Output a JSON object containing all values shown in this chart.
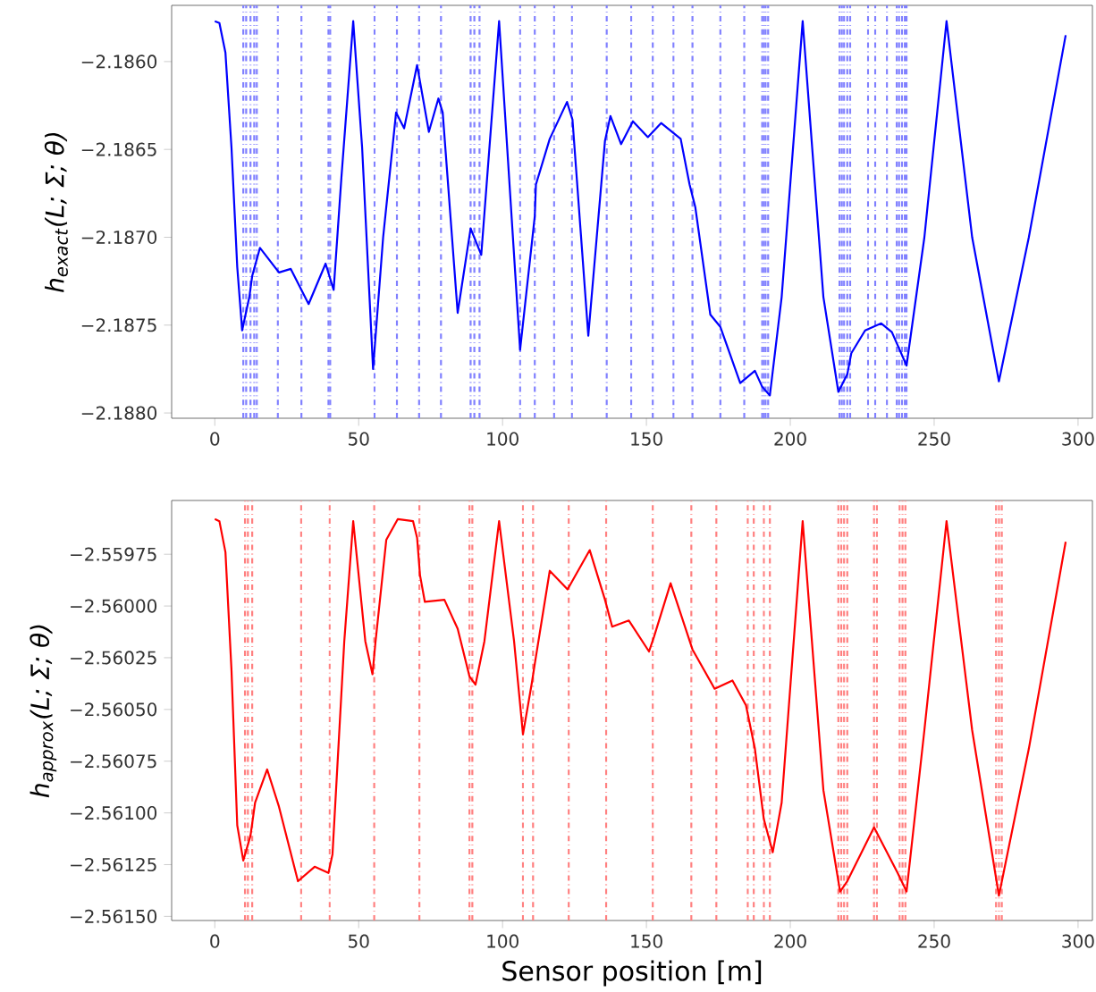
{
  "chart_data": [
    {
      "type": "line",
      "ylabel": "h$_{exact}$(L; Σ; θ)",
      "x": [
        0,
        1.6,
        3.7,
        5.8,
        7.8,
        9.5,
        12,
        13,
        15.7,
        22.3,
        26.4,
        32.6,
        38.5,
        41.3,
        44,
        48.1,
        51.2,
        55,
        58.5,
        63,
        65.8,
        70.3,
        74.4,
        77.7,
        79.2,
        84.4,
        88.9,
        92.6,
        98.8,
        106.1,
        111.2,
        111.6,
        116.4,
        122.4,
        124.3,
        129.8,
        135.6,
        137.5,
        141.2,
        145.3,
        150.5,
        155.1,
        161.9,
        165,
        167,
        172.2,
        175.7,
        182.6,
        187.7,
        190.2,
        192.9,
        197,
        204.3,
        211.5,
        216.7,
        219.8,
        221.2,
        226,
        231.6,
        235.3,
        238,
        240.4,
        246.6,
        254.3,
        263.2,
        272.5,
        282.9,
        295.7
      ],
      "values": [
        -2.18577,
        -2.18578,
        -2.18595,
        -2.18649,
        -2.18717,
        -2.18753,
        -2.18734,
        -2.18722,
        -2.18706,
        -2.1872,
        -2.18718,
        -2.18738,
        -2.18715,
        -2.1873,
        -2.18666,
        -2.18577,
        -2.18649,
        -2.18775,
        -2.187,
        -2.18629,
        -2.18638,
        -2.18602,
        -2.1864,
        -2.18621,
        -2.18629,
        -2.18743,
        -2.18695,
        -2.1871,
        -2.18577,
        -2.18764,
        -2.18688,
        -2.1867,
        -2.18644,
        -2.18623,
        -2.18633,
        -2.18756,
        -2.18645,
        -2.18631,
        -2.18647,
        -2.18634,
        -2.18643,
        -2.18635,
        -2.18644,
        -2.1867,
        -2.18683,
        -2.18744,
        -2.18751,
        -2.18783,
        -2.18776,
        -2.18785,
        -2.1879,
        -2.18734,
        -2.18577,
        -2.18734,
        -2.18788,
        -2.18778,
        -2.18766,
        -2.18753,
        -2.18749,
        -2.18754,
        -2.18764,
        -2.18773,
        -2.187,
        -2.18577,
        -2.187,
        -2.18782,
        -2.187,
        -2.18585
      ],
      "color": "#0000ff",
      "xlim": [
        -15,
        305
      ],
      "xticks": [
        0,
        50,
        100,
        150,
        200,
        250,
        300
      ],
      "ylim": [
        -2.18803,
        -2.18568
      ],
      "yticks": [
        {
          "value": -2.186,
          "label": "−2.1860"
        },
        {
          "value": -2.1865,
          "label": "−2.1865"
        },
        {
          "value": -2.187,
          "label": "−2.1870"
        },
        {
          "value": -2.1875,
          "label": "−2.1875"
        },
        {
          "value": -2.188,
          "label": "−2.1880"
        }
      ],
      "ref_lines": [
        {
          "axis": "x",
          "value": 9.9,
          "color": "#8080ff",
          "line_style": "dashdot"
        },
        {
          "axis": "x",
          "value": 10.9,
          "color": "#8080ff",
          "line_style": "dashdot"
        },
        {
          "axis": "x",
          "value": 12.4,
          "color": "#8080ff",
          "line_style": "dashdot"
        },
        {
          "axis": "x",
          "value": 13.7,
          "color": "#8080ff",
          "line_style": "dashdot"
        },
        {
          "axis": "x",
          "value": 14.6,
          "color": "#8080ff",
          "line_style": "dashdot"
        },
        {
          "axis": "x",
          "value": 21.9,
          "color": "#8080ff",
          "line_style": "dashdot"
        },
        {
          "axis": "x",
          "value": 30.1,
          "color": "#8080ff",
          "line_style": "dashdot"
        },
        {
          "axis": "x",
          "value": 39.5,
          "color": "#8080ff",
          "line_style": "dashdot"
        },
        {
          "axis": "x",
          "value": 40.1,
          "color": "#8080ff",
          "line_style": "dashdot"
        },
        {
          "axis": "x",
          "value": 55.5,
          "color": "#8080ff",
          "line_style": "dashdot"
        },
        {
          "axis": "x",
          "value": 63.3,
          "color": "#8080ff",
          "line_style": "dashdot"
        },
        {
          "axis": "x",
          "value": 71,
          "color": "#8080ff",
          "line_style": "dashdot"
        },
        {
          "axis": "x",
          "value": 78.6,
          "color": "#8080ff",
          "line_style": "dashdot"
        },
        {
          "axis": "x",
          "value": 88.9,
          "color": "#8080ff",
          "line_style": "dashdot"
        },
        {
          "axis": "x",
          "value": 90.2,
          "color": "#8080ff",
          "line_style": "dashdot"
        },
        {
          "axis": "x",
          "value": 92,
          "color": "#8080ff",
          "line_style": "dashdot"
        },
        {
          "axis": "x",
          "value": 106.1,
          "color": "#8080ff",
          "line_style": "dashdot"
        },
        {
          "axis": "x",
          "value": 111.2,
          "color": "#8080ff",
          "line_style": "dashdot"
        },
        {
          "axis": "x",
          "value": 117.9,
          "color": "#8080ff",
          "line_style": "dashdot"
        },
        {
          "axis": "x",
          "value": 124.1,
          "color": "#8080ff",
          "line_style": "dashdot"
        },
        {
          "axis": "x",
          "value": 136.2,
          "color": "#8080ff",
          "line_style": "dashdot"
        },
        {
          "axis": "x",
          "value": 144.7,
          "color": "#8080ff",
          "line_style": "dashdot"
        },
        {
          "axis": "x",
          "value": 152.2,
          "color": "#8080ff",
          "line_style": "dashdot"
        },
        {
          "axis": "x",
          "value": 159.4,
          "color": "#8080ff",
          "line_style": "dashdot"
        },
        {
          "axis": "x",
          "value": 166,
          "color": "#8080ff",
          "line_style": "dashdot"
        },
        {
          "axis": "x",
          "value": 175.7,
          "color": "#8080ff",
          "line_style": "dashdot"
        },
        {
          "axis": "x",
          "value": 184,
          "color": "#8080ff",
          "line_style": "dashdot"
        },
        {
          "axis": "x",
          "value": 190.2,
          "color": "#8080ff",
          "line_style": "dashdot"
        },
        {
          "axis": "x",
          "value": 190.8,
          "color": "#8080ff",
          "line_style": "dashdot"
        },
        {
          "axis": "x",
          "value": 191.4,
          "color": "#8080ff",
          "line_style": "dashdot"
        },
        {
          "axis": "x",
          "value": 192.3,
          "color": "#8080ff",
          "line_style": "dashdot"
        },
        {
          "axis": "x",
          "value": 217.1,
          "color": "#8080ff",
          "line_style": "dashdot"
        },
        {
          "axis": "x",
          "value": 217.9,
          "color": "#8080ff",
          "line_style": "dashdot"
        },
        {
          "axis": "x",
          "value": 218.7,
          "color": "#8080ff",
          "line_style": "dashdot"
        },
        {
          "axis": "x",
          "value": 219.8,
          "color": "#8080ff",
          "line_style": "dashdot"
        },
        {
          "axis": "x",
          "value": 220.8,
          "color": "#8080ff",
          "line_style": "dashdot"
        },
        {
          "axis": "x",
          "value": 227,
          "color": "#8080ff",
          "line_style": "dashdot"
        },
        {
          "axis": "x",
          "value": 229.5,
          "color": "#8080ff",
          "line_style": "dashdot"
        },
        {
          "axis": "x",
          "value": 233.6,
          "color": "#8080ff",
          "line_style": "dashdot"
        },
        {
          "axis": "x",
          "value": 237,
          "color": "#8080ff",
          "line_style": "dashdot"
        },
        {
          "axis": "x",
          "value": 237.8,
          "color": "#8080ff",
          "line_style": "dashdot"
        },
        {
          "axis": "x",
          "value": 238.8,
          "color": "#8080ff",
          "line_style": "dashdot"
        },
        {
          "axis": "x",
          "value": 239.8,
          "color": "#8080ff",
          "line_style": "dashdot"
        },
        {
          "axis": "x",
          "value": 240.4,
          "color": "#8080ff",
          "line_style": "dashdot"
        }
      ]
    },
    {
      "type": "line",
      "xlabel": "Sensor position [m]",
      "ylabel": "h$_{approx}$(L; Σ; θ)",
      "x": [
        0,
        1.6,
        3.7,
        5.8,
        7.8,
        9.9,
        12.4,
        14,
        18.2,
        22.3,
        28.9,
        34.7,
        39.5,
        40.9,
        45,
        48.1,
        52.3,
        54.8,
        55.8,
        59.6,
        63.6,
        68.9,
        70.3,
        71.3,
        73,
        79.8,
        84.4,
        88.5,
        90.6,
        93.7,
        98.8,
        104,
        107.1,
        110.2,
        111.2,
        116.4,
        122.6,
        130.3,
        135.6,
        138.1,
        143.9,
        150.9,
        152.6,
        158.4,
        166,
        173.7,
        179.9,
        184.6,
        187.7,
        190.8,
        193.9,
        197,
        204.3,
        211.5,
        217.3,
        219.8,
        229.1,
        237.3,
        240.4,
        246.6,
        254.3,
        263.2,
        272.5,
        282.9,
        295.7
      ],
      "values": [
        -2.55958,
        -2.55959,
        -2.55974,
        -2.56031,
        -2.56106,
        -2.56123,
        -2.56111,
        -2.56095,
        -2.56079,
        -2.56097,
        -2.56133,
        -2.56126,
        -2.56129,
        -2.5612,
        -2.56017,
        -2.55959,
        -2.56017,
        -2.56033,
        -2.56018,
        -2.55968,
        -2.55958,
        -2.55959,
        -2.55967,
        -2.55985,
        -2.55998,
        -2.55997,
        -2.56011,
        -2.56034,
        -2.56038,
        -2.56017,
        -2.55959,
        -2.56017,
        -2.56062,
        -2.56037,
        -2.56028,
        -2.55983,
        -2.55992,
        -2.55973,
        -2.55997,
        -2.5601,
        -2.56007,
        -2.56022,
        -2.56015,
        -2.55989,
        -2.56021,
        -2.5604,
        -2.56036,
        -2.56048,
        -2.56069,
        -2.56103,
        -2.56119,
        -2.56095,
        -2.55959,
        -2.56089,
        -2.56138,
        -2.56133,
        -2.56107,
        -2.56129,
        -2.56138,
        -2.5606,
        -2.55959,
        -2.5606,
        -2.5614,
        -2.56069,
        -2.55969
      ],
      "color": "#ff0000",
      "xlim": [
        -15,
        305
      ],
      "xticks": [
        0,
        50,
        100,
        150,
        200,
        250,
        300
      ],
      "ylim": [
        -2.56152,
        -2.55949
      ],
      "yticks": [
        {
          "value": -2.55975,
          "label": "−2.55975"
        },
        {
          "value": -2.56,
          "label": "−2.56000"
        },
        {
          "value": -2.56025,
          "label": "−2.56025"
        },
        {
          "value": -2.5605,
          "label": "−2.56050"
        },
        {
          "value": -2.56075,
          "label": "−2.56075"
        },
        {
          "value": -2.561,
          "label": "−2.56100"
        },
        {
          "value": -2.56125,
          "label": "−2.56125"
        },
        {
          "value": -2.5615,
          "label": "−2.56150"
        }
      ],
      "ref_lines": [
        {
          "axis": "x",
          "value": 10.5,
          "color": "#ff8080",
          "line_style": "dashdot"
        },
        {
          "axis": "x",
          "value": 11.5,
          "color": "#ff8080",
          "line_style": "dashdot"
        },
        {
          "axis": "x",
          "value": 13,
          "color": "#ff8080",
          "line_style": "dashdot"
        },
        {
          "axis": "x",
          "value": 30,
          "color": "#ff8080",
          "line_style": "dashdot"
        },
        {
          "axis": "x",
          "value": 39.9,
          "color": "#ff8080",
          "line_style": "dashdot"
        },
        {
          "axis": "x",
          "value": 55.4,
          "color": "#ff8080",
          "line_style": "dashdot"
        },
        {
          "axis": "x",
          "value": 71.1,
          "color": "#ff8080",
          "line_style": "dashdot"
        },
        {
          "axis": "x",
          "value": 88.5,
          "color": "#ff8080",
          "line_style": "dashdot"
        },
        {
          "axis": "x",
          "value": 89.5,
          "color": "#ff8080",
          "line_style": "dashdot"
        },
        {
          "axis": "x",
          "value": 107.1,
          "color": "#ff8080",
          "line_style": "dashdot"
        },
        {
          "axis": "x",
          "value": 110.6,
          "color": "#ff8080",
          "line_style": "dashdot"
        },
        {
          "axis": "x",
          "value": 123,
          "color": "#ff8080",
          "line_style": "dashdot"
        },
        {
          "axis": "x",
          "value": 136,
          "color": "#ff8080",
          "line_style": "dashdot"
        },
        {
          "axis": "x",
          "value": 152.2,
          "color": "#ff8080",
          "line_style": "dashdot"
        },
        {
          "axis": "x",
          "value": 165.6,
          "color": "#ff8080",
          "line_style": "dashdot"
        },
        {
          "axis": "x",
          "value": 174.3,
          "color": "#ff8080",
          "line_style": "dashdot"
        },
        {
          "axis": "x",
          "value": 185.2,
          "color": "#ff8080",
          "line_style": "dashdot"
        },
        {
          "axis": "x",
          "value": 187.3,
          "color": "#ff8080",
          "line_style": "dashdot"
        },
        {
          "axis": "x",
          "value": 190.8,
          "color": "#ff8080",
          "line_style": "dashdot"
        },
        {
          "axis": "x",
          "value": 192.9,
          "color": "#ff8080",
          "line_style": "dashdot"
        },
        {
          "axis": "x",
          "value": 216.7,
          "color": "#ff8080",
          "line_style": "dashdot"
        },
        {
          "axis": "x",
          "value": 217.7,
          "color": "#ff8080",
          "line_style": "dashdot"
        },
        {
          "axis": "x",
          "value": 218.7,
          "color": "#ff8080",
          "line_style": "dashdot"
        },
        {
          "axis": "x",
          "value": 219.8,
          "color": "#ff8080",
          "line_style": "dashdot"
        },
        {
          "axis": "x",
          "value": 229.1,
          "color": "#ff8080",
          "line_style": "dashdot"
        },
        {
          "axis": "x",
          "value": 230.1,
          "color": "#ff8080",
          "line_style": "dashdot"
        },
        {
          "axis": "x",
          "value": 238,
          "color": "#ff8080",
          "line_style": "dashdot"
        },
        {
          "axis": "x",
          "value": 239,
          "color": "#ff8080",
          "line_style": "dashdot"
        },
        {
          "axis": "x",
          "value": 240,
          "color": "#ff8080",
          "line_style": "dashdot"
        },
        {
          "axis": "x",
          "value": 271.5,
          "color": "#ff8080",
          "line_style": "dashdot"
        },
        {
          "axis": "x",
          "value": 272.5,
          "color": "#ff8080",
          "line_style": "dashdot"
        },
        {
          "axis": "x",
          "value": 273.5,
          "color": "#ff8080",
          "line_style": "dashdot"
        }
      ]
    }
  ]
}
